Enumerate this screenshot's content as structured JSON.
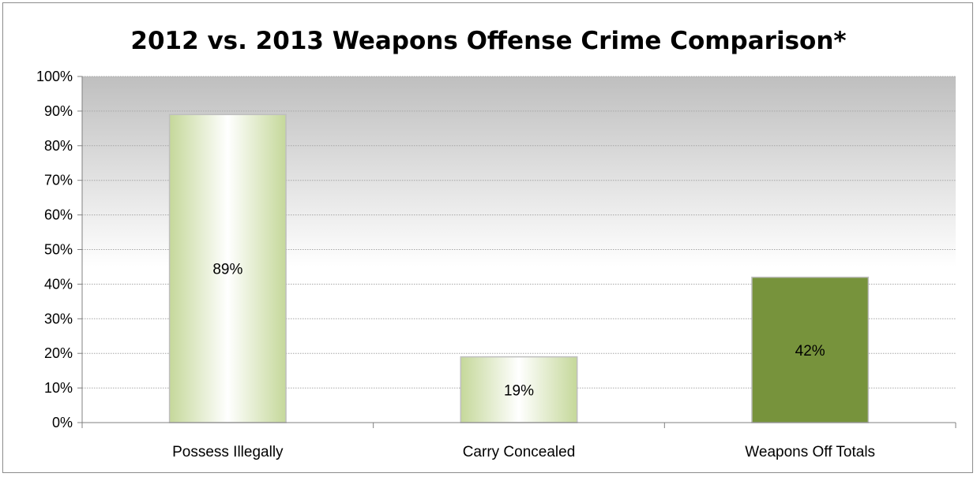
{
  "chart_data": {
    "type": "bar",
    "title": "2012 vs. 2013 Weapons Offense Crime Comparison*",
    "categories": [
      "Possess Illegally",
      "Carry Concealed",
      "Weapons Off Totals"
    ],
    "values": [
      89,
      19,
      42
    ],
    "data_labels": [
      "89%",
      "19%",
      "42%"
    ],
    "y_ticks": [
      "0%",
      "10%",
      "20%",
      "30%",
      "40%",
      "50%",
      "60%",
      "70%",
      "80%",
      "90%",
      "100%"
    ],
    "ylim": [
      0,
      100
    ],
    "xlabel": "",
    "ylabel": "",
    "grid": true,
    "legend": "none",
    "colors": {
      "bar_gradient_edge": "#c5d89a",
      "bar_gradient_center": "#ffffff",
      "bar_solid": "#77933c",
      "bar_border": "#bfbfbf",
      "plot_top": "#bfbfbf",
      "plot_bottom": "#ffffff",
      "gridline": "#a6a6a6",
      "axis": "#808080"
    }
  }
}
